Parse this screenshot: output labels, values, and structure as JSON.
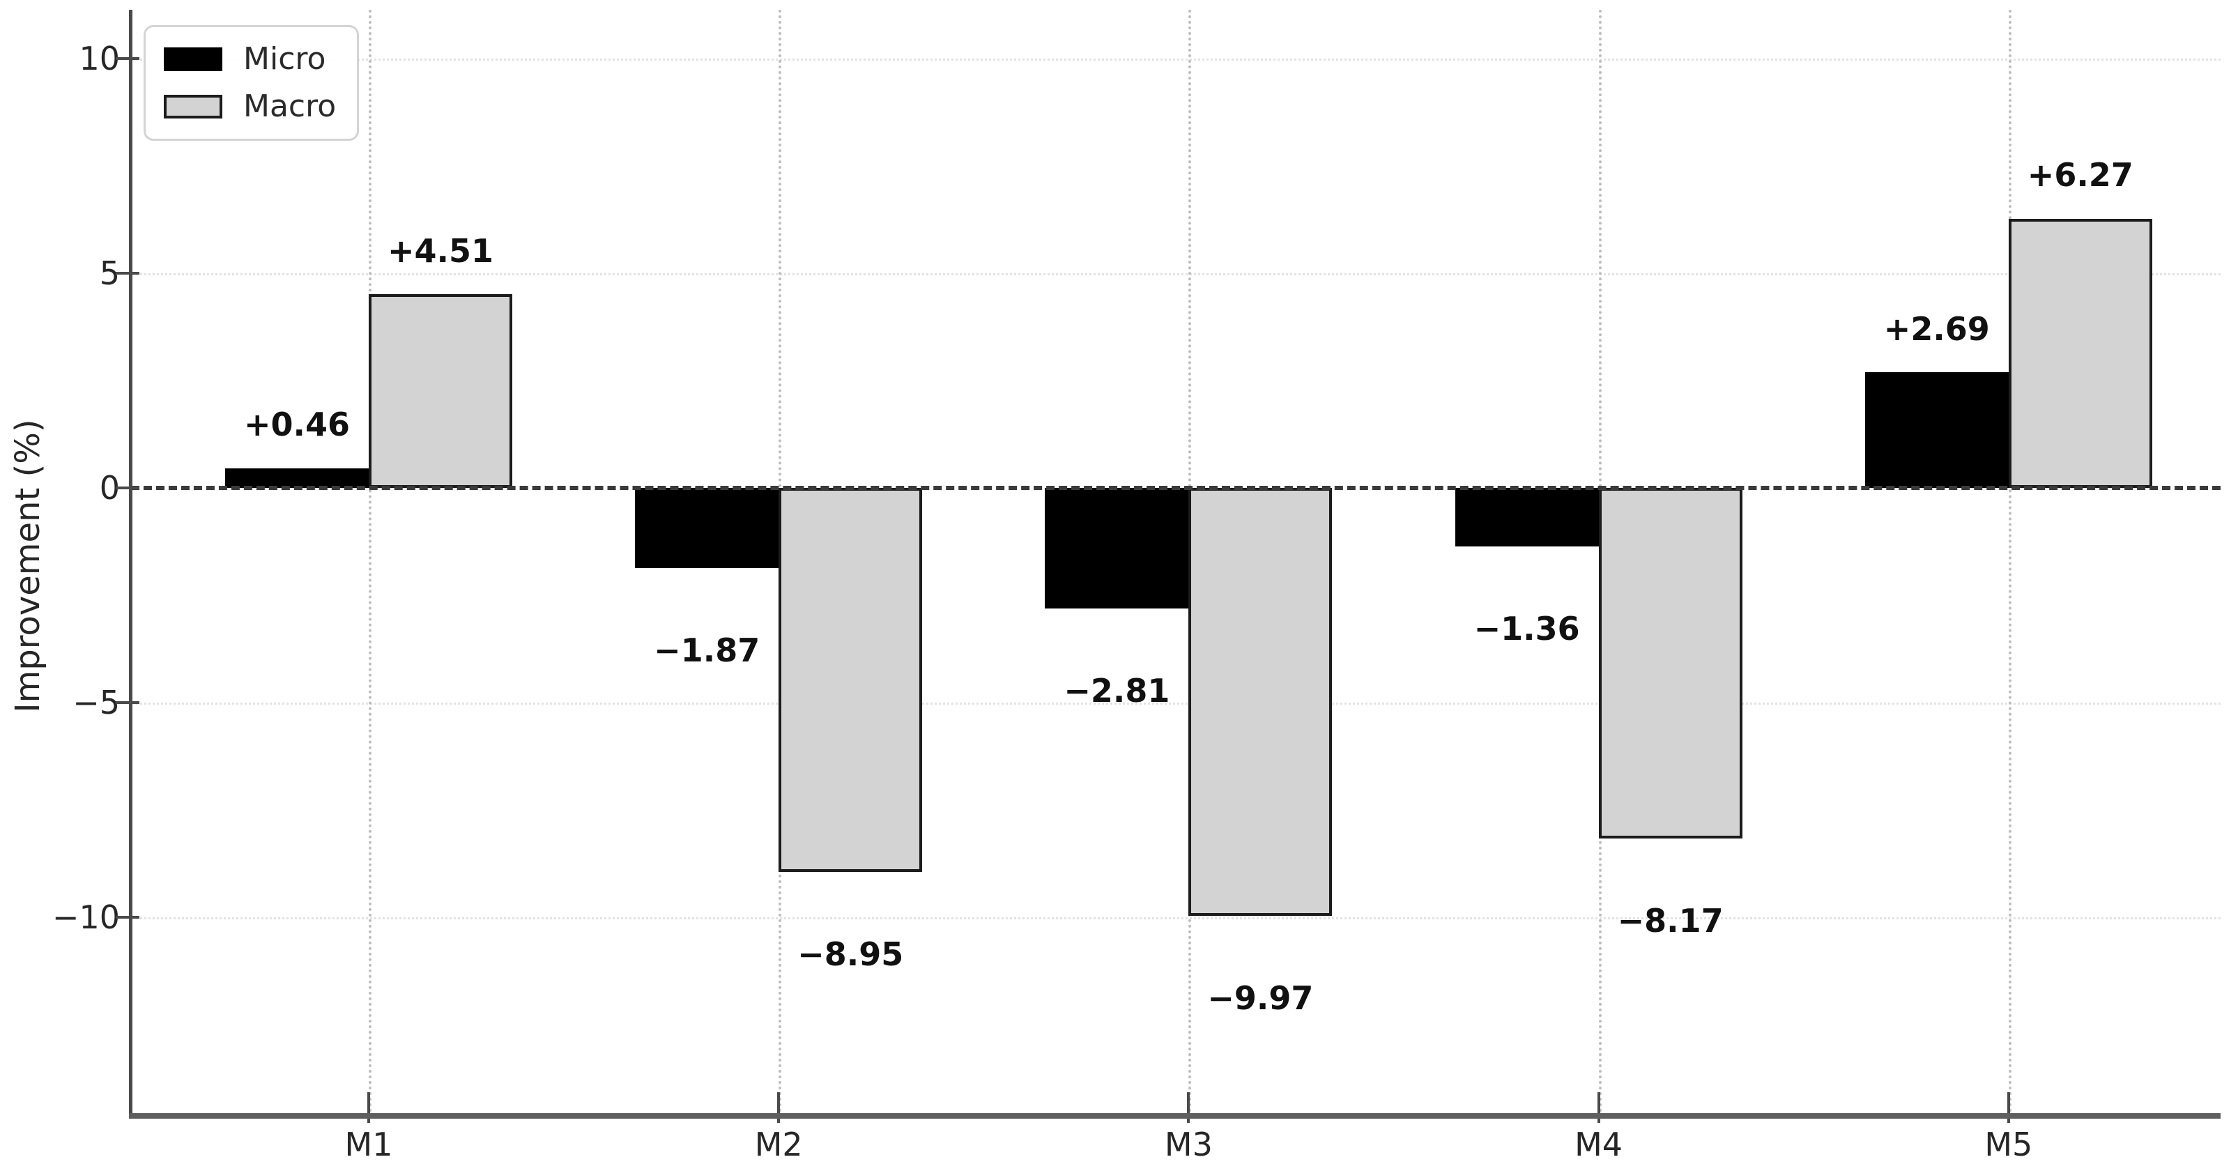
{
  "chart_data": {
    "type": "bar",
    "title": "",
    "categories": [
      "M1",
      "M2",
      "M3",
      "M4",
      "M5"
    ],
    "series": [
      {
        "name": "Micro",
        "color": "#000000",
        "edge_color": "#000000",
        "values": [
          0.46,
          -1.87,
          -2.81,
          -1.36,
          2.69
        ],
        "labels": [
          "+0.46",
          "−1.87",
          "−2.81",
          "−1.36",
          "+2.69"
        ]
      },
      {
        "name": "Macro",
        "color": "#d3d3d3",
        "edge_color": "#1c1c1c",
        "values": [
          4.51,
          -8.95,
          -9.97,
          -8.17,
          6.27
        ],
        "labels": [
          "+4.51",
          "−8.95",
          "−9.97",
          "−8.17",
          "+6.27"
        ]
      }
    ],
    "xlabel": "",
    "ylabel": "Improvement (%)",
    "yticks": [
      {
        "value": 10,
        "label": "10"
      },
      {
        "value": 5,
        "label": "5"
      },
      {
        "value": 0,
        "label": "0"
      },
      {
        "value": -5,
        "label": "−5"
      },
      {
        "value": -10,
        "label": "−10"
      }
    ],
    "ylim": [
      -14.56,
      11.14
    ],
    "zero_line": {
      "style": "dashed",
      "color": "#3a3a3a",
      "at": 0
    },
    "grid": {
      "vertical": "dotted light gray at each category",
      "horizontal": "faint dotted at each y tick"
    },
    "legend": {
      "position": "upper left",
      "entries": [
        "Micro",
        "Macro"
      ]
    },
    "background": "#ffffff"
  }
}
